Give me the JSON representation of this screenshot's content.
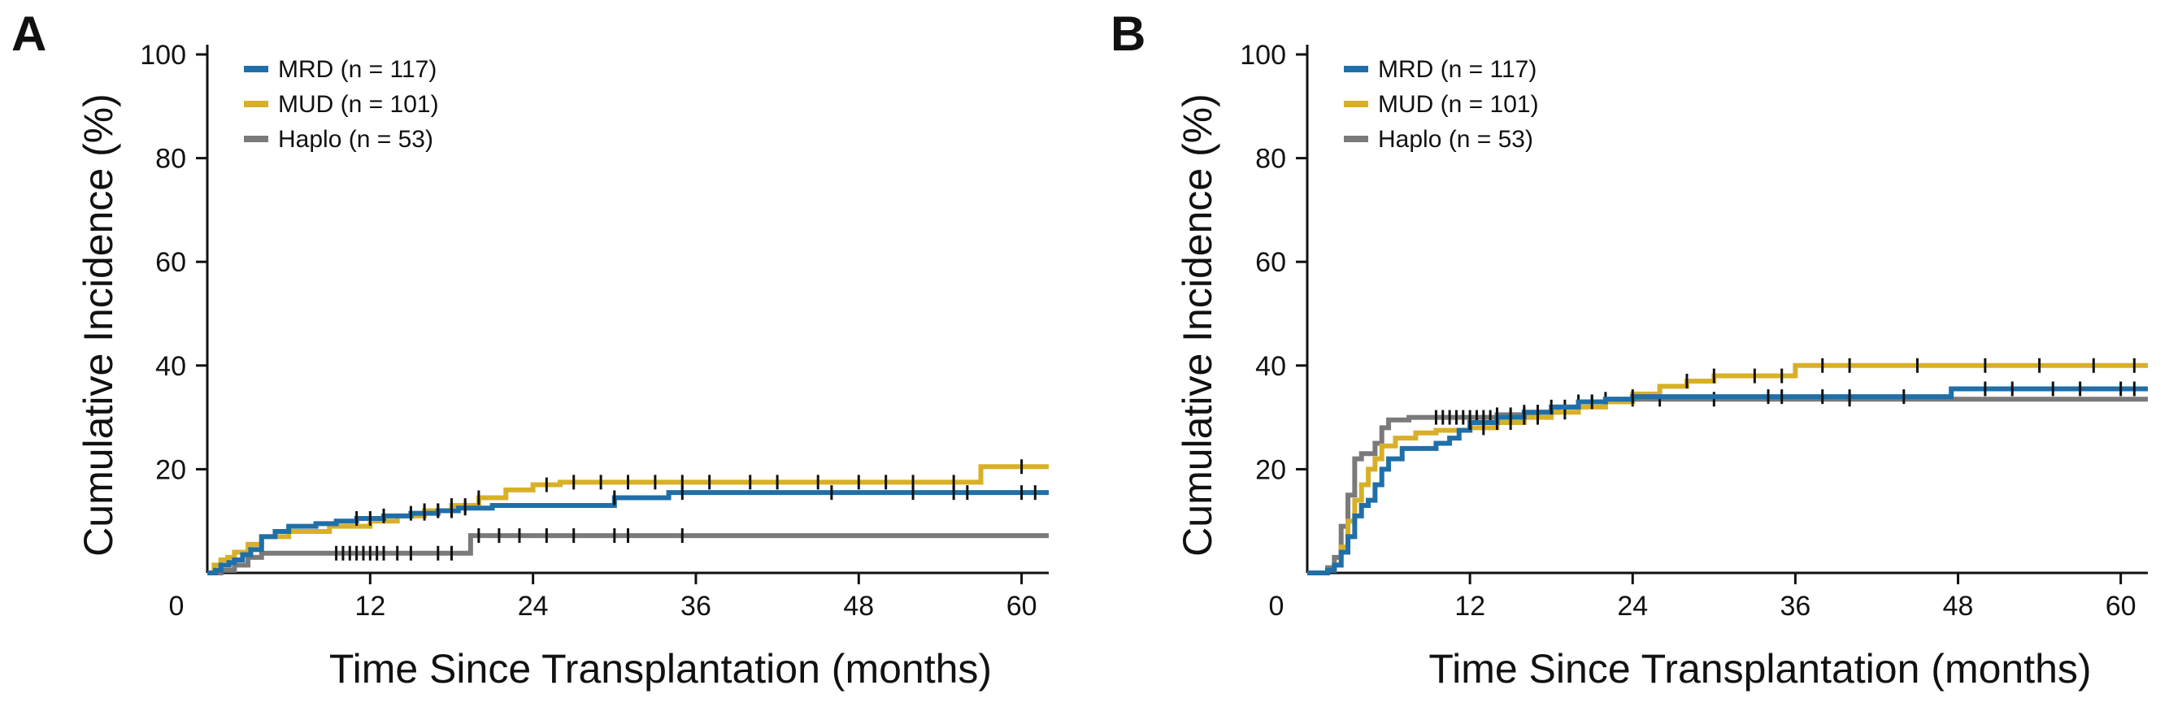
{
  "chart_data": [
    {
      "type": "line",
      "step": true,
      "panel_label": "A",
      "xlabel": "Time Since Transplantation (months)",
      "ylabel": "Cumulative Incidence (%)",
      "xlim": [
        0,
        62
      ],
      "ylim": [
        0,
        100
      ],
      "xticks": [
        0,
        12,
        24,
        36,
        48,
        60
      ],
      "yticks": [
        20,
        40,
        60,
        80,
        100
      ],
      "grid": false,
      "legend_position": "top-left",
      "series": [
        {
          "name": "MRD (n = 117)",
          "color": "#1F6FA8",
          "x": [
            0,
            0.6,
            1.0,
            1.6,
            2.0,
            2.6,
            3.2,
            4.0,
            5.0,
            6.0,
            8.0,
            9.5,
            11.0,
            13.0,
            15.0,
            17.0,
            18.5,
            21.0,
            24.0,
            30.0,
            34.0,
            40.0,
            50.0,
            62.0
          ],
          "y": [
            0,
            0.5,
            1.5,
            2.0,
            2.5,
            3.5,
            4.5,
            7.0,
            8.0,
            9.0,
            9.5,
            10.0,
            10.5,
            11.0,
            11.5,
            12.0,
            12.5,
            13.0,
            13.0,
            14.5,
            15.5,
            15.5,
            15.5,
            15.5
          ],
          "censor_x": [
            11,
            12,
            13,
            15,
            16,
            17,
            18,
            19,
            30,
            35,
            46,
            52,
            55,
            56,
            60,
            61
          ]
        },
        {
          "name": "MUD (n = 101)",
          "color": "#D8B028",
          "x": [
            0,
            0.5,
            1.0,
            1.5,
            2.0,
            3.0,
            4.0,
            6.0,
            9.0,
            12.0,
            14.0,
            16.0,
            18.0,
            20.0,
            22.0,
            24.0,
            26.0,
            30.0,
            40.0,
            50.0,
            56.0,
            57.0,
            62.0
          ],
          "y": [
            0,
            1.5,
            2.5,
            3.0,
            4.0,
            5.5,
            7.0,
            8.0,
            9.0,
            10.0,
            11.0,
            12.0,
            13.0,
            14.5,
            16.0,
            17.0,
            17.5,
            17.5,
            17.5,
            17.5,
            17.5,
            20.5,
            20.5
          ],
          "censor_x": [
            16,
            17,
            18,
            19,
            20,
            25,
            27,
            29,
            31,
            33,
            35,
            37,
            40,
            42,
            45,
            48,
            50,
            52,
            55,
            60
          ]
        },
        {
          "name": "Haplo (n = 53)",
          "color": "#7A7A7A",
          "x": [
            0,
            1.0,
            2.0,
            3.0,
            4.0,
            10.0,
            15.0,
            19.0,
            19.4,
            30.0,
            45.0,
            62.0
          ],
          "y": [
            0,
            0.5,
            1.5,
            3.0,
            3.8,
            3.8,
            3.8,
            3.8,
            7.2,
            7.2,
            7.2,
            7.2
          ],
          "censor_x": [
            9.5,
            10,
            10.5,
            11,
            11.5,
            12,
            12.5,
            13,
            14,
            15,
            17,
            18,
            20,
            21.5,
            23,
            25,
            27,
            30,
            31,
            35
          ]
        }
      ]
    },
    {
      "type": "line",
      "step": true,
      "panel_label": "B",
      "xlabel": "Time Since Transplantation (months)",
      "ylabel": "Cumulative Incidence (%)",
      "xlim": [
        0,
        62
      ],
      "ylim": [
        0,
        100
      ],
      "xticks": [
        0,
        12,
        24,
        36,
        48,
        60
      ],
      "yticks": [
        20,
        40,
        60,
        80,
        100
      ],
      "grid": false,
      "legend_position": "top-left",
      "series": [
        {
          "name": "MRD (n = 117)",
          "color": "#1F6FA8",
          "x": [
            0,
            1.5,
            2.0,
            2.5,
            3.0,
            3.5,
            4.0,
            4.5,
            5.0,
            5.5,
            6.0,
            7.0,
            9.5,
            10.5,
            11.2,
            12.0,
            14.0,
            16.0,
            18.0,
            20.0,
            22.0,
            24.0,
            30.0,
            40.0,
            47.5,
            62.0
          ],
          "y": [
            0,
            0.5,
            1.5,
            4.0,
            7.0,
            11.0,
            13.0,
            14.0,
            17.0,
            20.0,
            22.0,
            24.0,
            25.0,
            26.0,
            27.5,
            29.0,
            30.0,
            31.0,
            32.0,
            33.0,
            33.5,
            34.0,
            34.0,
            34.0,
            35.5,
            35.5
          ],
          "censor_x": [
            12,
            13,
            14,
            15,
            16,
            17,
            18,
            21,
            24,
            34,
            35,
            38,
            40,
            44,
            50,
            52,
            55,
            57,
            60,
            61
          ]
        },
        {
          "name": "MUD (n = 101)",
          "color": "#D8B028",
          "x": [
            0,
            1.5,
            2.0,
            2.5,
            3.0,
            3.5,
            4.0,
            4.5,
            5.0,
            5.5,
            6.5,
            8.0,
            9.5,
            12.0,
            14.0,
            16.0,
            18.0,
            20.0,
            22.0,
            24.0,
            26.0,
            28.0,
            30.0,
            32.0,
            36.0,
            46.0,
            62.0
          ],
          "y": [
            0,
            0.5,
            1.5,
            5.0,
            10.0,
            14.0,
            17.0,
            20.0,
            22.0,
            24.5,
            26.0,
            27.0,
            27.5,
            28.0,
            29.0,
            30.0,
            31.0,
            32.0,
            33.0,
            34.5,
            36.0,
            37.0,
            38.0,
            38.0,
            40.0,
            40.0,
            40.0
          ],
          "censor_x": [
            13,
            14,
            15,
            16,
            17,
            19,
            28,
            30,
            33,
            35,
            38,
            40,
            45,
            50,
            54,
            58,
            61
          ]
        },
        {
          "name": "Haplo (n = 53)",
          "color": "#7A7A7A",
          "x": [
            0,
            1.5,
            2.0,
            2.5,
            3.0,
            3.5,
            4.0,
            4.5,
            5.0,
            5.5,
            6.0,
            7.5,
            10.0,
            12.0,
            14.0,
            17.0,
            18.5,
            20.0,
            22.0,
            24.0,
            30.0,
            40.0,
            62.0
          ],
          "y": [
            0,
            1.0,
            3.0,
            9.0,
            15.0,
            22.0,
            23.0,
            23.0,
            25.0,
            28.0,
            29.5,
            30.0,
            30.0,
            30.0,
            30.5,
            31.0,
            32.0,
            33.0,
            33.5,
            33.5,
            33.5,
            33.5,
            33.5
          ],
          "censor_x": [
            9.5,
            10,
            10.5,
            11,
            11.5,
            12,
            12.5,
            13,
            13.5,
            14,
            15,
            16,
            17,
            18,
            19,
            20,
            21,
            22,
            24,
            26,
            30,
            40
          ]
        }
      ]
    }
  ]
}
